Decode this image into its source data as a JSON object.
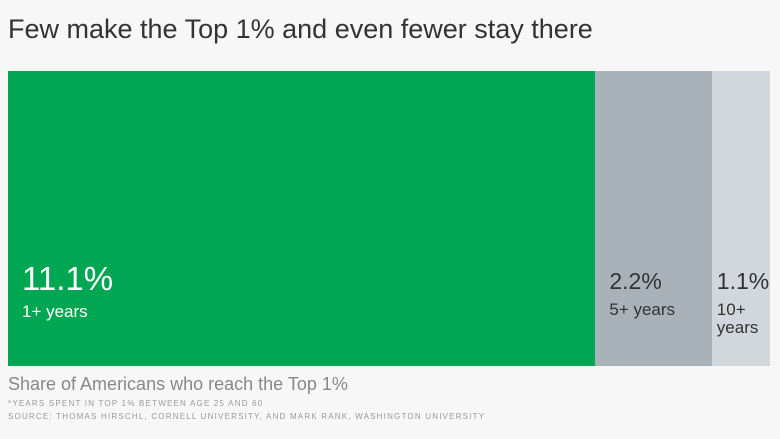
{
  "chart_data": {
    "type": "proportional-bar",
    "title": "Few make the Top 1% and even fewer stay there",
    "categories": [
      "1+ years",
      "5+ years",
      "10+ years"
    ],
    "values": [
      11.1,
      2.2,
      1.1
    ],
    "value_labels": [
      "11.1%",
      "2.2%",
      "1.1%"
    ],
    "colors": [
      "#00a651",
      "#a9b1b9",
      "#d2d6dd"
    ],
    "subtitle": "Share of Americans who reach the Top 1%",
    "note": "*YEARS SPENT IN TOP 1% BETWEEN AGE 25 AND 60",
    "source": "SOURCE: THOMAS HIRSCHL, CORNELL UNIVERSITY, AND MARK RANK, WASHINGTON UNIVERSITY"
  }
}
